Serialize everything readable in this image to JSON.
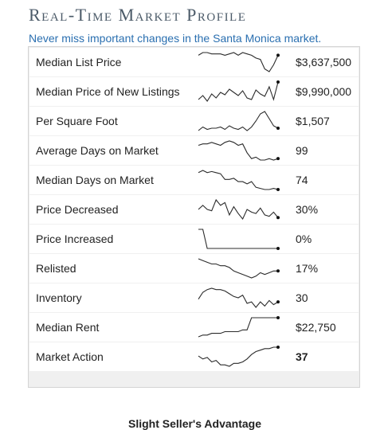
{
  "header": {
    "title": "Real-Time Market Profile",
    "subtitle": "Never miss important changes in the Santa Monica market."
  },
  "rows": [
    {
      "label": "Median List Price",
      "value": "$3,637,500",
      "trend": [
        72,
        74,
        74,
        73,
        73,
        73,
        72,
        73,
        74,
        72,
        74,
        73,
        72,
        70,
        69,
        62,
        60,
        65,
        72
      ]
    },
    {
      "label": "Median Price of New Listings",
      "value": "$9,990,000",
      "trend": [
        40,
        45,
        38,
        47,
        42,
        49,
        46,
        53,
        49,
        45,
        51,
        42,
        40,
        52,
        47,
        44,
        56,
        40,
        62
      ]
    },
    {
      "label": "Per Square Foot",
      "value": "$1,507",
      "trend": [
        30,
        33,
        31,
        32,
        32,
        33,
        31,
        34,
        32,
        31,
        33,
        30,
        33,
        38,
        44,
        46,
        40,
        34,
        32
      ]
    },
    {
      "label": "Average Days on Market",
      "value": "99",
      "trend": [
        74,
        75,
        75,
        76,
        75,
        74,
        76,
        77,
        76,
        74,
        75,
        69,
        65,
        66,
        64,
        64,
        65,
        64,
        65
      ]
    },
    {
      "label": "Median Days on Market",
      "value": "74",
      "trend": [
        70,
        72,
        70,
        71,
        70,
        69,
        64,
        64,
        65,
        62,
        62,
        60,
        62,
        57,
        56,
        55,
        55,
        56,
        55
      ]
    },
    {
      "label": "Price Decreased",
      "value": "30%",
      "trend": [
        40,
        43,
        40,
        39,
        47,
        43,
        45,
        36,
        42,
        37,
        33,
        40,
        38,
        37,
        41,
        36,
        35,
        38,
        34
      ]
    },
    {
      "label": "Price Increased",
      "value": "0%",
      "trend": [
        10,
        10,
        1,
        1,
        1,
        1,
        1,
        1,
        1,
        1,
        1,
        1,
        1,
        1,
        1,
        1,
        1,
        1,
        1
      ]
    },
    {
      "label": "Relisted",
      "value": "17%",
      "trend": [
        26,
        25,
        24,
        23,
        23,
        22,
        22,
        21,
        19,
        18,
        17,
        16,
        15,
        16,
        18,
        17,
        18,
        19,
        19
      ]
    },
    {
      "label": "Inventory",
      "value": "30",
      "trend": [
        32,
        37,
        39,
        40,
        39,
        39,
        38,
        36,
        34,
        33,
        35,
        29,
        30,
        26,
        30,
        27,
        31,
        28,
        30
      ]
    },
    {
      "label": "Median Rent",
      "value": "$22,750",
      "trend": [
        15,
        16,
        16,
        17,
        17,
        17,
        18,
        18,
        18,
        18,
        19,
        19,
        26,
        26,
        26,
        26,
        26,
        26,
        26
      ]
    },
    {
      "label": "Market Action",
      "value": "37",
      "bold": true,
      "trend": [
        40,
        38,
        39,
        36,
        37,
        34,
        34,
        33,
        35,
        35,
        36,
        38,
        41,
        43,
        44,
        45,
        45,
        46,
        46
      ]
    }
  ],
  "advantage": "Slight Seller's Advantage"
}
